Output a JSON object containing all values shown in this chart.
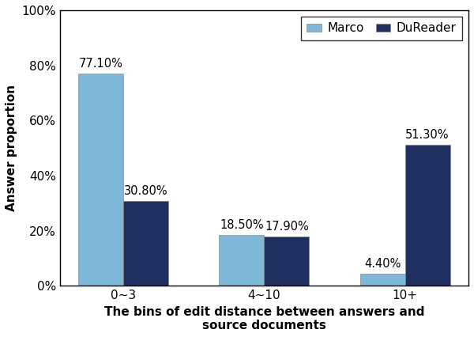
{
  "categories": [
    "0~3",
    "4~10",
    "10+"
  ],
  "marco_values": [
    0.771,
    0.185,
    0.044
  ],
  "dureader_values": [
    0.308,
    0.179,
    0.513
  ],
  "marco_labels": [
    "77.10%",
    "18.50%",
    "4.40%"
  ],
  "dureader_labels": [
    "30.80%",
    "17.90%",
    "51.30%"
  ],
  "marco_color": "#7eb8d9",
  "dureader_color": "#1f3060",
  "ylabel": "Answer proportion",
  "xlabel": "The bins of edit distance between answers and\nsource documents",
  "legend_labels": [
    "Marco",
    "DuReader"
  ],
  "ylim": [
    0,
    1.0
  ],
  "yticks": [
    0.0,
    0.2,
    0.4,
    0.6,
    0.8,
    1.0
  ],
  "ytick_labels": [
    "0%",
    "20%",
    "40%",
    "60%",
    "80%",
    "100%"
  ],
  "bar_width": 0.32,
  "label_fontsize": 10.5,
  "axis_label_fontsize": 11,
  "tick_fontsize": 11,
  "legend_fontsize": 11
}
